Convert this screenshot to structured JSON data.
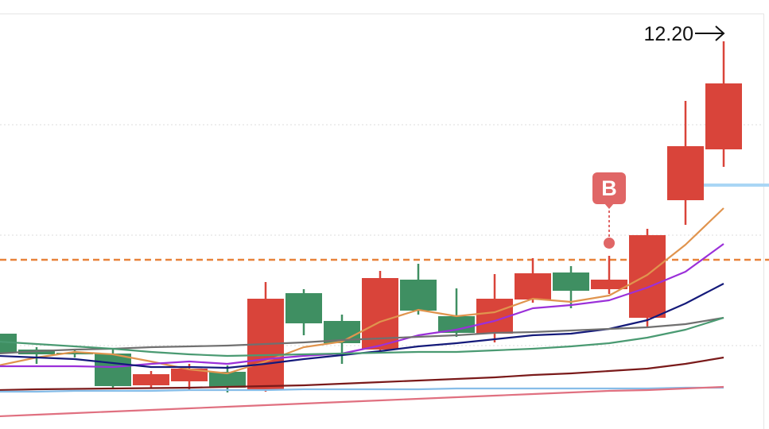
{
  "chart_data": {
    "type": "candlestick",
    "categories": [
      null,
      null,
      null,
      null,
      null,
      null,
      null,
      null,
      null,
      null,
      null,
      null,
      null,
      null,
      null,
      null,
      null,
      null,
      null,
      null
    ],
    "open": [
      10.728,
      10.648,
      10.632,
      10.628,
      10.468,
      10.488,
      10.536,
      10.444,
      10.932,
      10.792,
      10.648,
      11.0,
      10.816,
      10.728,
      10.9,
      11.036,
      10.952,
      10.808,
      11.4,
      11.656
    ],
    "high": [
      10.728,
      10.66,
      10.648,
      10.648,
      10.54,
      10.576,
      10.568,
      10.988,
      10.952,
      10.824,
      11.044,
      11.08,
      10.956,
      11.028,
      11.108,
      11.068,
      11.12,
      11.256,
      11.9,
      12.2
    ],
    "low": [
      10.632,
      10.576,
      10.608,
      10.456,
      10.452,
      10.448,
      10.432,
      10.436,
      10.72,
      10.576,
      10.64,
      10.824,
      10.712,
      10.684,
      10.884,
      10.856,
      10.928,
      10.756,
      11.276,
      11.568
    ],
    "close": [
      10.632,
      10.624,
      10.624,
      10.464,
      10.524,
      10.552,
      10.456,
      10.904,
      10.78,
      10.68,
      11.008,
      10.844,
      10.732,
      10.904,
      11.032,
      10.944,
      11.0,
      11.224,
      11.672,
      11.988
    ],
    "up_color": "#d9443a",
    "down_color": "#3f8f62",
    "lines": [
      {
        "color": "#e0944e",
        "values": [
          10.568,
          10.608,
          10.636,
          10.624,
          10.588,
          10.548,
          10.528,
          10.588,
          10.66,
          10.688,
          10.788,
          10.848,
          10.816,
          10.836,
          10.904,
          10.888,
          10.92,
          11.024,
          11.176,
          11.36
        ]
      },
      {
        "color": "#9b30d9",
        "values": [
          10.564,
          10.564,
          10.564,
          10.56,
          10.576,
          10.588,
          10.576,
          10.6,
          10.616,
          10.628,
          10.668,
          10.72,
          10.748,
          10.792,
          10.856,
          10.872,
          10.896,
          10.96,
          11.04,
          11.18
        ]
      },
      {
        "color": "#141a7a",
        "values": [
          10.616,
          10.608,
          10.6,
          10.58,
          10.56,
          10.56,
          10.556,
          10.576,
          10.6,
          10.62,
          10.64,
          10.664,
          10.68,
          10.7,
          10.72,
          10.728,
          10.752,
          10.796,
          10.88,
          10.98
        ]
      },
      {
        "color": "#707070",
        "values": [
          10.628,
          10.64,
          10.648,
          10.652,
          10.66,
          10.664,
          10.668,
          10.676,
          10.684,
          10.696,
          10.704,
          10.712,
          10.72,
          10.732,
          10.736,
          10.744,
          10.752,
          10.76,
          10.776,
          10.808
        ]
      },
      {
        "color": "#4a9a72",
        "values": [
          10.688,
          10.676,
          10.664,
          10.652,
          10.636,
          10.624,
          10.616,
          10.62,
          10.624,
          10.628,
          10.632,
          10.636,
          10.636,
          10.644,
          10.652,
          10.664,
          10.68,
          10.708,
          10.748,
          10.808
        ]
      },
      {
        "color": "#7a1a1a",
        "values": [
          10.444,
          10.448,
          10.45,
          10.452,
          10.454,
          10.456,
          10.46,
          10.464,
          10.468,
          10.476,
          10.484,
          10.492,
          10.5,
          10.508,
          10.52,
          10.528,
          10.54,
          10.552,
          10.576,
          10.608
        ]
      },
      {
        "color": "#86bde8",
        "values": [
          10.436,
          10.436,
          10.44,
          10.44,
          10.44,
          10.444,
          10.444,
          10.444,
          10.448,
          10.448,
          10.448,
          10.448,
          10.452,
          10.452,
          10.452,
          10.452,
          10.452,
          10.452,
          10.456,
          10.456
        ]
      },
      {
        "color": "#e07080",
        "values": [
          10.312,
          10.32,
          10.328,
          10.336,
          10.344,
          10.352,
          10.36,
          10.368,
          10.376,
          10.384,
          10.392,
          10.4,
          10.408,
          10.416,
          10.424,
          10.432,
          10.44,
          10.444,
          10.452,
          10.46
        ]
      }
    ],
    "hlines": [
      {
        "value": 11.1,
        "color": "#e8823a",
        "style": "dashed"
      },
      {
        "value": 11.476,
        "color": "#a9d6f5",
        "start_index": 18
      }
    ],
    "markers": [
      {
        "label": "B",
        "index": 16,
        "color": "#e06666"
      }
    ],
    "max_label": "12.20",
    "ylim": [
      10.248,
      12.408
    ]
  }
}
